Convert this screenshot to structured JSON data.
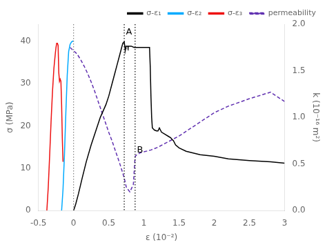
{
  "chart_data": {
    "type": "line",
    "xlabel": "ε (10⁻²)",
    "ylabel": "σ (MPa)",
    "y2label": "k (10⁻¹⁶ m²)",
    "xlim": [
      -0.5,
      3.0
    ],
    "xticks": [
      -0.5,
      0,
      0.5,
      1,
      1.5,
      2,
      2.5,
      3
    ],
    "ylim": [
      0,
      44
    ],
    "yticks": [
      0,
      10,
      20,
      30,
      40
    ],
    "y2lim": [
      0,
      2.0
    ],
    "y2ticks": [
      {
        "value": 0,
        "label": "0.0"
      },
      {
        "value": 0.5,
        "label": "0.5"
      },
      {
        "value": 1.0,
        "label": "1.0"
      },
      {
        "value": 1.5,
        "label": "1.5"
      },
      {
        "value": 2.0,
        "label": "2.0"
      }
    ],
    "grid": false,
    "legend": "upper right",
    "series": [
      {
        "name": "σ-ε₁",
        "color": "#000000",
        "x": [
          0.0,
          0.03,
          0.07,
          0.12,
          0.18,
          0.25,
          0.32,
          0.38,
          0.42,
          0.46,
          0.5,
          0.54,
          0.58,
          0.62,
          0.66,
          0.7,
          0.72,
          0.73,
          0.735,
          0.74,
          0.745,
          0.75,
          0.76,
          0.77,
          0.775,
          0.78,
          0.82,
          0.86,
          0.9,
          0.92,
          0.95,
          1.0,
          1.05,
          1.08,
          1.09,
          1.1,
          1.11,
          1.12,
          1.15,
          1.18,
          1.2,
          1.22,
          1.25,
          1.28,
          1.3,
          1.35,
          1.38,
          1.4,
          1.42,
          1.45,
          1.5,
          1.6,
          1.8,
          2.0,
          2.2,
          2.5,
          2.8,
          3.0
        ],
        "values": [
          0.0,
          1.5,
          4.0,
          7.5,
          11.5,
          15.5,
          19.0,
          22.0,
          23.5,
          25.0,
          27.0,
          29.5,
          32.0,
          34.5,
          37.0,
          39.5,
          39.8,
          38.5,
          37.8,
          38.2,
          38.8,
          38.8,
          38.8,
          38.8,
          38.5,
          38.8,
          38.8,
          38.5,
          38.5,
          38.5,
          38.5,
          38.5,
          38.5,
          38.5,
          34.0,
          27.0,
          22.0,
          19.5,
          19.0,
          18.8,
          18.8,
          19.5,
          18.5,
          18.2,
          18.0,
          17.5,
          17.2,
          16.8,
          16.5,
          15.5,
          14.8,
          14.0,
          13.2,
          12.8,
          12.2,
          11.8,
          11.5,
          11.2
        ]
      },
      {
        "name": "σ-ε₂",
        "color": "#00aaff",
        "x": [
          -0.17,
          -0.15,
          -0.13,
          -0.11,
          -0.09,
          -0.07,
          -0.05,
          -0.03,
          -0.01,
          0.0
        ],
        "values": [
          0.0,
          5.0,
          13.0,
          23.0,
          32.0,
          37.5,
          39.2,
          39.8,
          40.0,
          40.0
        ]
      },
      {
        "name": "σ-ε₃",
        "color": "#ee1111",
        "x": [
          -0.38,
          -0.36,
          -0.34,
          -0.32,
          -0.3,
          -0.28,
          -0.26,
          -0.25,
          -0.24,
          -0.23,
          -0.22,
          -0.21,
          -0.2,
          -0.19,
          -0.18,
          -0.17,
          -0.16,
          -0.15
        ],
        "values": [
          0.0,
          5.5,
          13.0,
          21.0,
          28.0,
          33.5,
          37.0,
          38.5,
          39.5,
          39.5,
          39.0,
          32.5,
          30.5,
          31.0,
          30.5,
          25.0,
          17.0,
          11.5
        ]
      },
      {
        "name": "permeability",
        "color": "#6030b0",
        "axis": "y2",
        "line_style": "dashed",
        "x": [
          -0.05,
          0.05,
          0.1,
          0.15,
          0.2,
          0.25,
          0.3,
          0.35,
          0.4,
          0.45,
          0.5,
          0.55,
          0.6,
          0.65,
          0.7,
          0.72,
          0.75,
          0.8,
          0.85,
          0.875,
          0.9,
          0.95,
          1.0,
          1.1,
          1.2,
          1.3,
          1.4,
          1.5,
          1.6,
          1.8,
          2.0,
          2.2,
          2.5,
          2.8,
          3.0
        ],
        "values": [
          1.75,
          1.68,
          1.62,
          1.55,
          1.47,
          1.38,
          1.28,
          1.17,
          1.06,
          0.95,
          0.84,
          0.74,
          0.63,
          0.52,
          0.4,
          0.35,
          0.25,
          0.2,
          0.28,
          0.58,
          0.6,
          0.62,
          0.63,
          0.65,
          0.68,
          0.72,
          0.76,
          0.8,
          0.85,
          0.95,
          1.05,
          1.12,
          1.2,
          1.27,
          1.17
        ]
      }
    ],
    "vlines": [
      {
        "x": 0.0,
        "color": "gray",
        "line_style": "dotted"
      },
      {
        "x": 0.72,
        "color": "black",
        "line_style": "dotted"
      },
      {
        "x": 0.875,
        "color": "black",
        "line_style": "dotted"
      }
    ],
    "annotations": [
      {
        "text": "A",
        "x": 0.745,
        "y": 41.0
      },
      {
        "text": "B",
        "x": 0.9,
        "y": 13.2
      }
    ]
  }
}
